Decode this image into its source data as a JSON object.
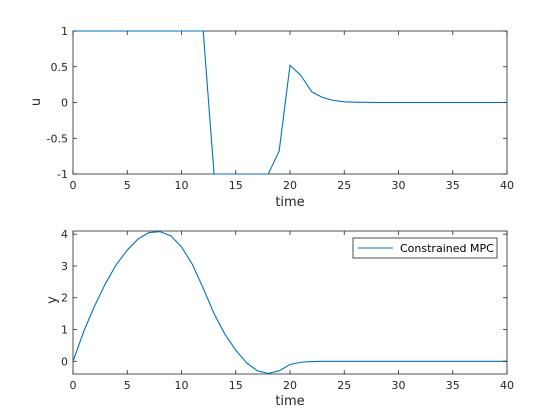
{
  "colors": {
    "series": "#0072bd",
    "axis": "#262626",
    "background": "#ffffff"
  },
  "chart_data": [
    {
      "type": "line",
      "xlabel": "time",
      "ylabel": "u",
      "xlim": [
        0,
        40
      ],
      "ylim": [
        -1,
        1
      ],
      "xticks": [
        0,
        5,
        10,
        15,
        20,
        25,
        30,
        35,
        40
      ],
      "yticks": [
        -1,
        -0.5,
        0,
        0.5,
        1
      ],
      "grid": false,
      "series": [
        {
          "x": [
            0,
            12,
            13,
            14,
            15,
            16,
            17,
            18,
            19,
            20,
            21,
            22,
            23,
            24,
            25,
            26,
            27,
            28,
            30,
            40
          ],
          "values": [
            1,
            1,
            -1,
            -1,
            -1,
            -1,
            -1,
            -1,
            -0.68,
            0.52,
            0.38,
            0.15,
            0.07,
            0.03,
            0.01,
            0.005,
            0.002,
            0,
            0,
            0
          ]
        }
      ]
    },
    {
      "type": "line",
      "xlabel": "time",
      "ylabel": "y",
      "xlim": [
        0,
        40
      ],
      "ylim": [
        -0.4,
        4.1
      ],
      "xticks": [
        0,
        5,
        10,
        15,
        20,
        25,
        30,
        35,
        40
      ],
      "yticks": [
        0,
        1,
        2,
        3,
        4
      ],
      "grid": false,
      "legend_position": "top-right",
      "series": [
        {
          "name": "Constrained MPC",
          "x": [
            0,
            1,
            2,
            3,
            4,
            5,
            6,
            7,
            8,
            9,
            10,
            11,
            12,
            13,
            14,
            15,
            16,
            17,
            18,
            19,
            20,
            21,
            22,
            23,
            24,
            25,
            30,
            35,
            40
          ],
          "values": [
            0,
            0.95,
            1.75,
            2.45,
            3.05,
            3.5,
            3.85,
            4.05,
            4.08,
            3.95,
            3.6,
            3.05,
            2.3,
            1.5,
            0.85,
            0.35,
            -0.05,
            -0.3,
            -0.38,
            -0.3,
            -0.1,
            -0.03,
            -0.01,
            0,
            0,
            0,
            0,
            0,
            0
          ]
        }
      ]
    }
  ]
}
